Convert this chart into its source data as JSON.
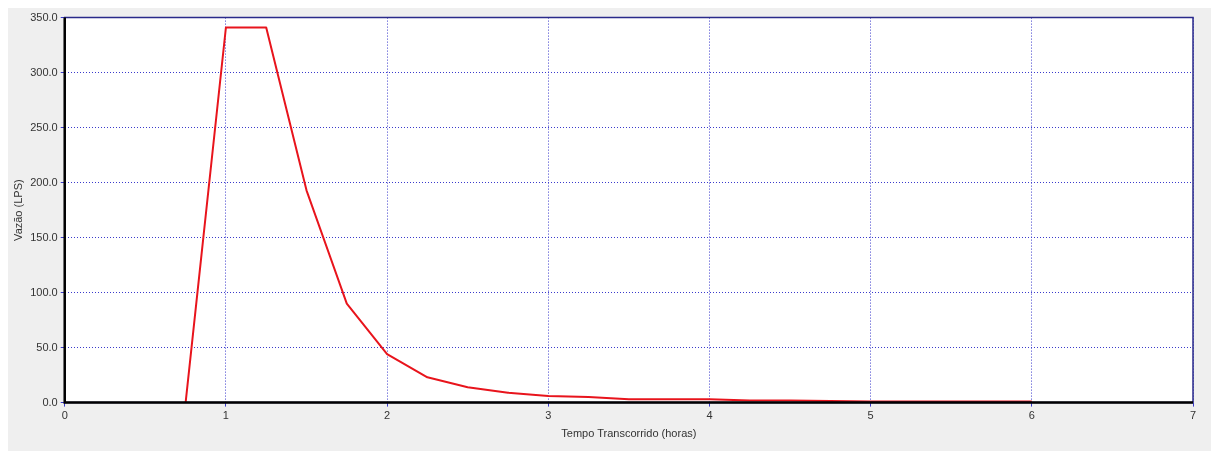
{
  "chart_data": {
    "type": "line",
    "xlabel": "Tempo Transcorrido (horas)",
    "ylabel": "Vazão (LPS)",
    "series": [
      {
        "color": "#e8141c",
        "x": [
          0.75,
          1,
          1.25,
          1.5,
          1.75,
          2,
          2.25,
          2.5,
          2.75,
          3,
          3.25,
          3.5,
          3.75,
          4,
          4.25,
          4.5,
          5,
          5.5,
          6
        ],
        "values": [
          0,
          341,
          341,
          193,
          90,
          44,
          23,
          14,
          9,
          6,
          5,
          3,
          3,
          3,
          2,
          2,
          1,
          1,
          1
        ]
      }
    ],
    "xlim": [
      0,
      7
    ],
    "xticks": [
      0,
      1,
      2,
      3,
      4,
      5,
      6,
      7
    ],
    "ylim": [
      0,
      350
    ],
    "yticks": [
      {
        "value": 0,
        "label": "0.0"
      },
      {
        "value": 50,
        "label": "50.0"
      },
      {
        "value": 100,
        "label": "100.0"
      },
      {
        "value": 150,
        "label": "150.0"
      },
      {
        "value": 200,
        "label": "200.0"
      },
      {
        "value": 250,
        "label": "250.0"
      },
      {
        "value": 300,
        "label": "300.0"
      },
      {
        "value": 350,
        "label": "350.0"
      }
    ],
    "grid": true,
    "legend": false,
    "marker": "none",
    "line_style": "solid"
  }
}
